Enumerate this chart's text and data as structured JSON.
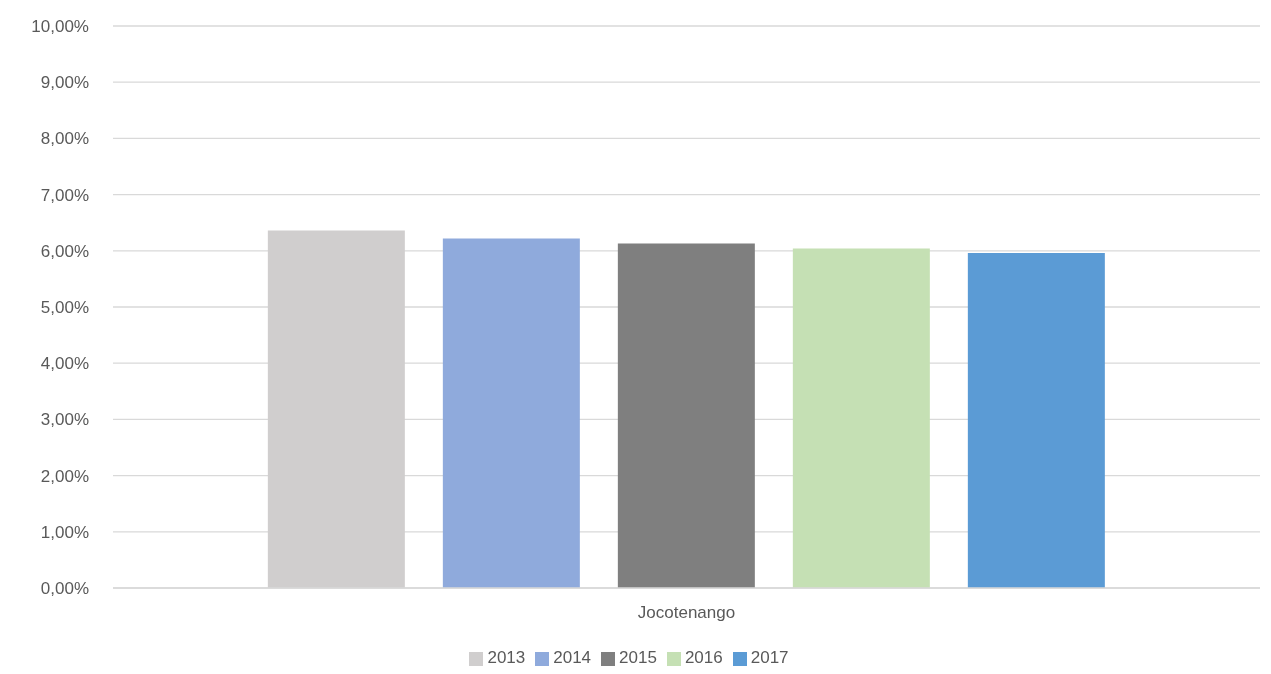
{
  "chart_data": {
    "type": "bar",
    "categories": [
      "Jocotenango"
    ],
    "series": [
      {
        "name": "2013",
        "color": "#d0cece",
        "values": [
          6.36
        ]
      },
      {
        "name": "2014",
        "color": "#8faadc",
        "values": [
          6.22
        ]
      },
      {
        "name": "2015",
        "color": "#7f7f7f",
        "values": [
          6.13
        ]
      },
      {
        "name": "2016",
        "color": "#c5e0b4",
        "values": [
          6.04
        ]
      },
      {
        "name": "2017",
        "color": "#5b9bd5",
        "values": [
          5.96
        ]
      }
    ],
    "ylim": [
      0,
      10
    ],
    "yticks": [
      {
        "value": 0,
        "label": "0,00%"
      },
      {
        "value": 1,
        "label": "1,00%"
      },
      {
        "value": 2,
        "label": "2,00%"
      },
      {
        "value": 3,
        "label": "3,00%"
      },
      {
        "value": 4,
        "label": "4,00%"
      },
      {
        "value": 5,
        "label": "5,00%"
      },
      {
        "value": 6,
        "label": "6,00%"
      },
      {
        "value": 7,
        "label": "7,00%"
      },
      {
        "value": 8,
        "label": "8,00%"
      },
      {
        "value": 9,
        "label": "9,00%"
      },
      {
        "value": 10,
        "label": "10,00%"
      }
    ],
    "grid": "y",
    "legend": "bottom"
  }
}
